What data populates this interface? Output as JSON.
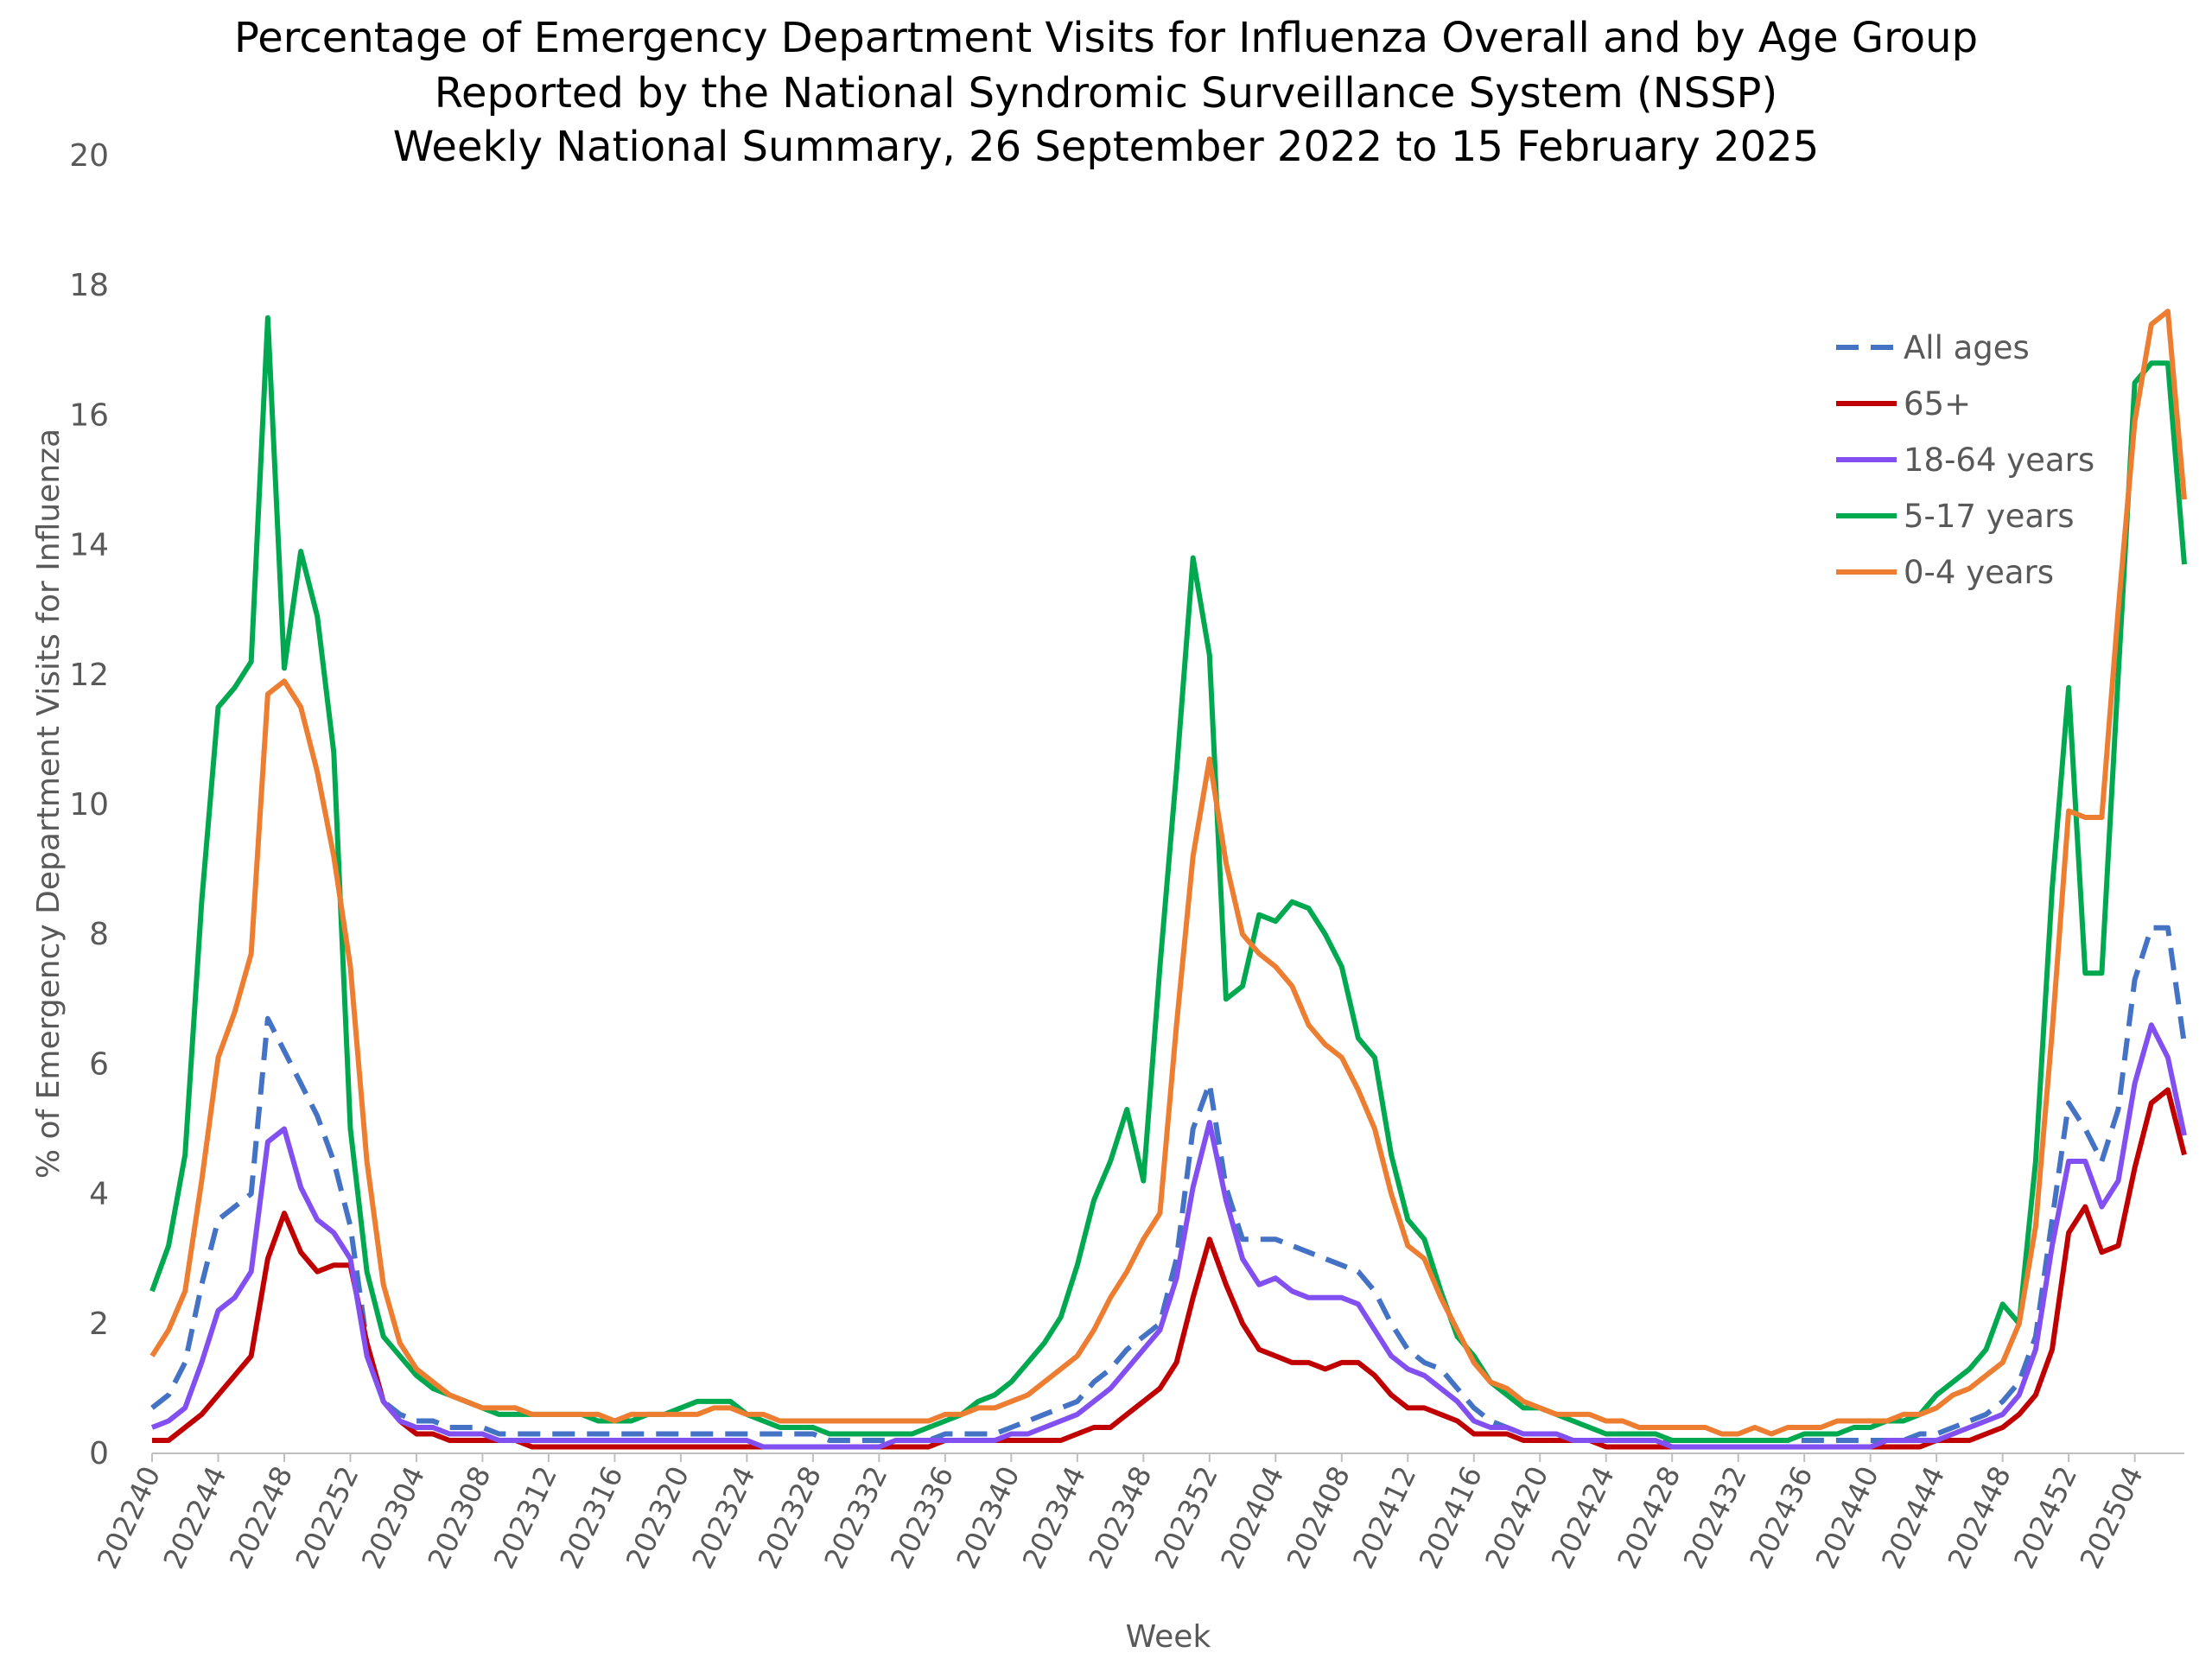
{
  "chart_data": {
    "type": "line",
    "title": [
      "Percentage of Emergency Department Visits for Influenza Overall and by Age Group",
      "Reported by the National Syndromic Surveillance System (NSSP)",
      "Weekly National Summary, 26 September 2022 to 15 February 2025"
    ],
    "x_label": "Week",
    "y_label": "% of Emergency Department Visits for Influenza",
    "categories": [
      "202240",
      null,
      null,
      null,
      "202244",
      null,
      null,
      null,
      "202248",
      null,
      null,
      null,
      "202252",
      null,
      null,
      null,
      "202304",
      null,
      null,
      null,
      "202308",
      null,
      null,
      null,
      "202312",
      null,
      null,
      null,
      "202316",
      null,
      null,
      null,
      "202320",
      null,
      null,
      null,
      "202324",
      null,
      null,
      null,
      "202328",
      null,
      null,
      null,
      "202332",
      null,
      null,
      null,
      "202336",
      null,
      null,
      null,
      "202340",
      null,
      null,
      null,
      "202344",
      null,
      null,
      null,
      "202348",
      null,
      null,
      null,
      "202352",
      null,
      null,
      null,
      "202404",
      null,
      null,
      null,
      "202408",
      null,
      null,
      null,
      "202412",
      null,
      null,
      null,
      "202416",
      null,
      null,
      null,
      "202420",
      null,
      null,
      null,
      "202424",
      null,
      null,
      null,
      "202428",
      null,
      null,
      null,
      "202432",
      null,
      null,
      null,
      "202436",
      null,
      null,
      null,
      "202440",
      null,
      null,
      null,
      "202444",
      null,
      null,
      null,
      "202448",
      null,
      null,
      null,
      "202452",
      null,
      null,
      null,
      "202504",
      null,
      null,
      null
    ],
    "ylim": [
      0,
      20
    ],
    "yticks": [
      0,
      2,
      4,
      6,
      8,
      10,
      12,
      14,
      16,
      18,
      20
    ],
    "grid": false,
    "legend": "upper right",
    "series": [
      {
        "name": "All ages",
        "color": "#4472c4",
        "dashed": true,
        "values": [
          0.7,
          0.9,
          1.4,
          2.6,
          3.6,
          3.8,
          4.0,
          6.7,
          6.2,
          5.7,
          5.2,
          4.5,
          3.5,
          1.7,
          0.8,
          0.6,
          0.5,
          0.5,
          0.4,
          0.4,
          0.4,
          0.3,
          0.3,
          0.3,
          0.3,
          0.3,
          0.3,
          0.3,
          0.3,
          0.3,
          0.3,
          0.3,
          0.3,
          0.3,
          0.3,
          0.3,
          0.3,
          0.3,
          0.3,
          0.3,
          0.3,
          0.2,
          0.2,
          0.2,
          0.2,
          0.2,
          0.2,
          0.2,
          0.3,
          0.3,
          0.3,
          0.3,
          0.4,
          0.5,
          0.6,
          0.7,
          0.8,
          1.1,
          1.3,
          1.6,
          1.8,
          2.0,
          3.0,
          5.0,
          5.7,
          4.1,
          3.3,
          3.3,
          3.3,
          3.2,
          3.1,
          3.0,
          2.9,
          2.8,
          2.5,
          2.0,
          1.6,
          1.4,
          1.3,
          1.0,
          0.7,
          0.5,
          0.4,
          0.3,
          0.3,
          0.3,
          0.2,
          0.2,
          0.2,
          0.2,
          0.2,
          0.2,
          0.2,
          0.2,
          0.2,
          0.2,
          0.2,
          0.2,
          0.2,
          0.2,
          0.2,
          0.2,
          0.2,
          0.2,
          0.2,
          0.2,
          0.2,
          0.3,
          0.3,
          0.4,
          0.5,
          0.6,
          0.8,
          1.1,
          1.8,
          3.6,
          5.4,
          5.0,
          4.5,
          5.3,
          7.3,
          8.1,
          8.1,
          6.3
        ]
      },
      {
        "name": "65+",
        "color": "#c00000",
        "values": [
          0.2,
          0.2,
          0.4,
          0.6,
          0.9,
          1.2,
          1.5,
          3.0,
          3.7,
          3.1,
          2.8,
          2.9,
          2.9,
          1.7,
          0.8,
          0.5,
          0.3,
          0.3,
          0.2,
          0.2,
          0.2,
          0.2,
          0.2,
          0.1,
          0.1,
          0.1,
          0.1,
          0.1,
          0.1,
          0.1,
          0.1,
          0.1,
          0.1,
          0.1,
          0.1,
          0.1,
          0.1,
          0.1,
          0.1,
          0.1,
          0.1,
          0.1,
          0.1,
          0.1,
          0.1,
          0.1,
          0.1,
          0.1,
          0.2,
          0.2,
          0.2,
          0.2,
          0.2,
          0.2,
          0.2,
          0.2,
          0.3,
          0.4,
          0.4,
          0.6,
          0.8,
          1.0,
          1.4,
          2.4,
          3.3,
          2.6,
          2.0,
          1.6,
          1.5,
          1.4,
          1.4,
          1.3,
          1.4,
          1.4,
          1.2,
          0.9,
          0.7,
          0.7,
          0.6,
          0.5,
          0.3,
          0.3,
          0.3,
          0.2,
          0.2,
          0.2,
          0.2,
          0.2,
          0.1,
          0.1,
          0.1,
          0.1,
          0.1,
          0.1,
          0.1,
          0.1,
          0.1,
          0.1,
          0.1,
          0.1,
          0.1,
          0.1,
          0.1,
          0.1,
          0.1,
          0.1,
          0.1,
          0.1,
          0.2,
          0.2,
          0.2,
          0.3,
          0.4,
          0.6,
          0.9,
          1.6,
          3.4,
          3.8,
          3.1,
          3.2,
          4.4,
          5.4,
          5.6,
          4.6
        ]
      },
      {
        "name": "18-64 years",
        "color": "#8250f0",
        "values": [
          0.4,
          0.5,
          0.7,
          1.4,
          2.2,
          2.4,
          2.8,
          4.8,
          5.0,
          4.1,
          3.6,
          3.4,
          3.0,
          1.5,
          0.8,
          0.5,
          0.4,
          0.4,
          0.3,
          0.3,
          0.3,
          0.2,
          0.2,
          0.2,
          0.2,
          0.2,
          0.2,
          0.2,
          0.2,
          0.2,
          0.2,
          0.2,
          0.2,
          0.2,
          0.2,
          0.2,
          0.2,
          0.1,
          0.1,
          0.1,
          0.1,
          0.1,
          0.1,
          0.1,
          0.1,
          0.2,
          0.2,
          0.2,
          0.2,
          0.2,
          0.2,
          0.2,
          0.3,
          0.3,
          0.4,
          0.5,
          0.6,
          0.8,
          1.0,
          1.3,
          1.6,
          1.9,
          2.7,
          4.1,
          5.1,
          3.9,
          3.0,
          2.6,
          2.7,
          2.5,
          2.4,
          2.4,
          2.4,
          2.3,
          1.9,
          1.5,
          1.3,
          1.2,
          1.0,
          0.8,
          0.5,
          0.4,
          0.4,
          0.3,
          0.3,
          0.3,
          0.2,
          0.2,
          0.2,
          0.2,
          0.2,
          0.2,
          0.1,
          0.1,
          0.1,
          0.1,
          0.1,
          0.1,
          0.1,
          0.1,
          0.1,
          0.1,
          0.1,
          0.1,
          0.1,
          0.2,
          0.2,
          0.2,
          0.2,
          0.3,
          0.4,
          0.5,
          0.6,
          0.9,
          1.6,
          3.2,
          4.5,
          4.5,
          3.8,
          4.2,
          5.7,
          6.6,
          6.1,
          4.9
        ]
      },
      {
        "name": "5-17 years",
        "color": "#00a84f",
        "values": [
          2.5,
          3.2,
          4.6,
          8.5,
          11.5,
          11.8,
          12.2,
          17.5,
          12.1,
          13.9,
          12.9,
          10.8,
          5.0,
          2.8,
          1.8,
          1.5,
          1.2,
          1.0,
          0.9,
          0.8,
          0.7,
          0.6,
          0.6,
          0.6,
          0.6,
          0.6,
          0.6,
          0.5,
          0.5,
          0.5,
          0.6,
          0.6,
          0.7,
          0.8,
          0.8,
          0.8,
          0.6,
          0.5,
          0.4,
          0.4,
          0.4,
          0.3,
          0.3,
          0.3,
          0.3,
          0.3,
          0.3,
          0.4,
          0.5,
          0.6,
          0.8,
          0.9,
          1.1,
          1.4,
          1.7,
          2.1,
          2.9,
          3.9,
          4.5,
          5.3,
          4.2,
          7.5,
          10.5,
          13.8,
          12.3,
          7.0,
          7.2,
          8.3,
          8.2,
          8.5,
          8.4,
          8.0,
          7.5,
          6.4,
          6.1,
          4.6,
          3.6,
          3.3,
          2.5,
          1.8,
          1.5,
          1.1,
          0.9,
          0.7,
          0.7,
          0.6,
          0.5,
          0.4,
          0.3,
          0.3,
          0.3,
          0.3,
          0.2,
          0.2,
          0.2,
          0.2,
          0.2,
          0.2,
          0.2,
          0.2,
          0.3,
          0.3,
          0.3,
          0.4,
          0.4,
          0.5,
          0.5,
          0.6,
          0.9,
          1.1,
          1.3,
          1.6,
          2.3,
          2.0,
          4.5,
          8.7,
          11.8,
          7.4,
          7.4,
          12.0,
          16.5,
          16.8,
          16.8,
          13.7
        ]
      },
      {
        "name": "0-4 years",
        "color": "#ed7d31",
        "values": [
          1.5,
          1.9,
          2.5,
          4.2,
          6.1,
          6.8,
          7.7,
          11.7,
          11.9,
          11.5,
          10.5,
          9.2,
          7.5,
          4.5,
          2.6,
          1.7,
          1.3,
          1.1,
          0.9,
          0.8,
          0.7,
          0.7,
          0.7,
          0.6,
          0.6,
          0.6,
          0.6,
          0.6,
          0.5,
          0.6,
          0.6,
          0.6,
          0.6,
          0.6,
          0.7,
          0.7,
          0.6,
          0.6,
          0.5,
          0.5,
          0.5,
          0.5,
          0.5,
          0.5,
          0.5,
          0.5,
          0.5,
          0.5,
          0.6,
          0.6,
          0.7,
          0.7,
          0.8,
          0.9,
          1.1,
          1.3,
          1.5,
          1.9,
          2.4,
          2.8,
          3.3,
          3.7,
          6.6,
          9.2,
          10.7,
          9.1,
          8.0,
          7.7,
          7.5,
          7.2,
          6.6,
          6.3,
          6.1,
          5.6,
          5.0,
          4.0,
          3.2,
          3.0,
          2.4,
          1.9,
          1.4,
          1.1,
          1.0,
          0.8,
          0.7,
          0.6,
          0.6,
          0.6,
          0.5,
          0.5,
          0.4,
          0.4,
          0.4,
          0.4,
          0.4,
          0.3,
          0.3,
          0.4,
          0.3,
          0.4,
          0.4,
          0.4,
          0.5,
          0.5,
          0.5,
          0.5,
          0.6,
          0.6,
          0.7,
          0.9,
          1.0,
          1.2,
          1.4,
          2.0,
          3.5,
          6.5,
          9.9,
          9.8,
          9.8,
          13.0,
          15.9,
          17.4,
          17.6,
          14.7
        ]
      }
    ]
  }
}
